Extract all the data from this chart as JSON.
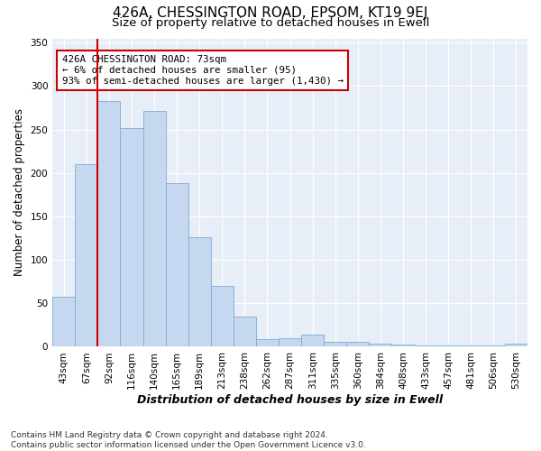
{
  "title": "426A, CHESSINGTON ROAD, EPSOM, KT19 9EJ",
  "subtitle": "Size of property relative to detached houses in Ewell",
  "xlabel": "Distribution of detached houses by size in Ewell",
  "ylabel": "Number of detached properties",
  "categories": [
    "43sqm",
    "67sqm",
    "92sqm",
    "116sqm",
    "140sqm",
    "165sqm",
    "189sqm",
    "213sqm",
    "238sqm",
    "262sqm",
    "287sqm",
    "311sqm",
    "335sqm",
    "360sqm",
    "384sqm",
    "408sqm",
    "433sqm",
    "457sqm",
    "481sqm",
    "506sqm",
    "530sqm"
  ],
  "values": [
    58,
    210,
    283,
    252,
    271,
    188,
    126,
    70,
    35,
    9,
    10,
    14,
    6,
    6,
    4,
    3,
    2,
    1,
    2,
    1,
    4
  ],
  "bar_color": "#c5d8f0",
  "bar_edge_color": "#7aadd4",
  "vline_color": "#cc0000",
  "vline_x_index": 1.5,
  "annotation_text": "426A CHESSINGTON ROAD: 73sqm\n← 6% of detached houses are smaller (95)\n93% of semi-detached houses are larger (1,430) →",
  "annotation_box_color": "#ffffff",
  "annotation_box_edge": "#cc0000",
  "ylim": [
    0,
    355
  ],
  "yticks": [
    0,
    50,
    100,
    150,
    200,
    250,
    300,
    350
  ],
  "bg_color": "#e8eef8",
  "grid_color": "#ffffff",
  "fig_bg_color": "#ffffff",
  "footer": "Contains HM Land Registry data © Crown copyright and database right 2024.\nContains public sector information licensed under the Open Government Licence v3.0.",
  "title_fontsize": 11,
  "subtitle_fontsize": 9.5,
  "xlabel_fontsize": 9,
  "ylabel_fontsize": 8.5,
  "tick_fontsize": 7.5,
  "footer_fontsize": 6.5
}
